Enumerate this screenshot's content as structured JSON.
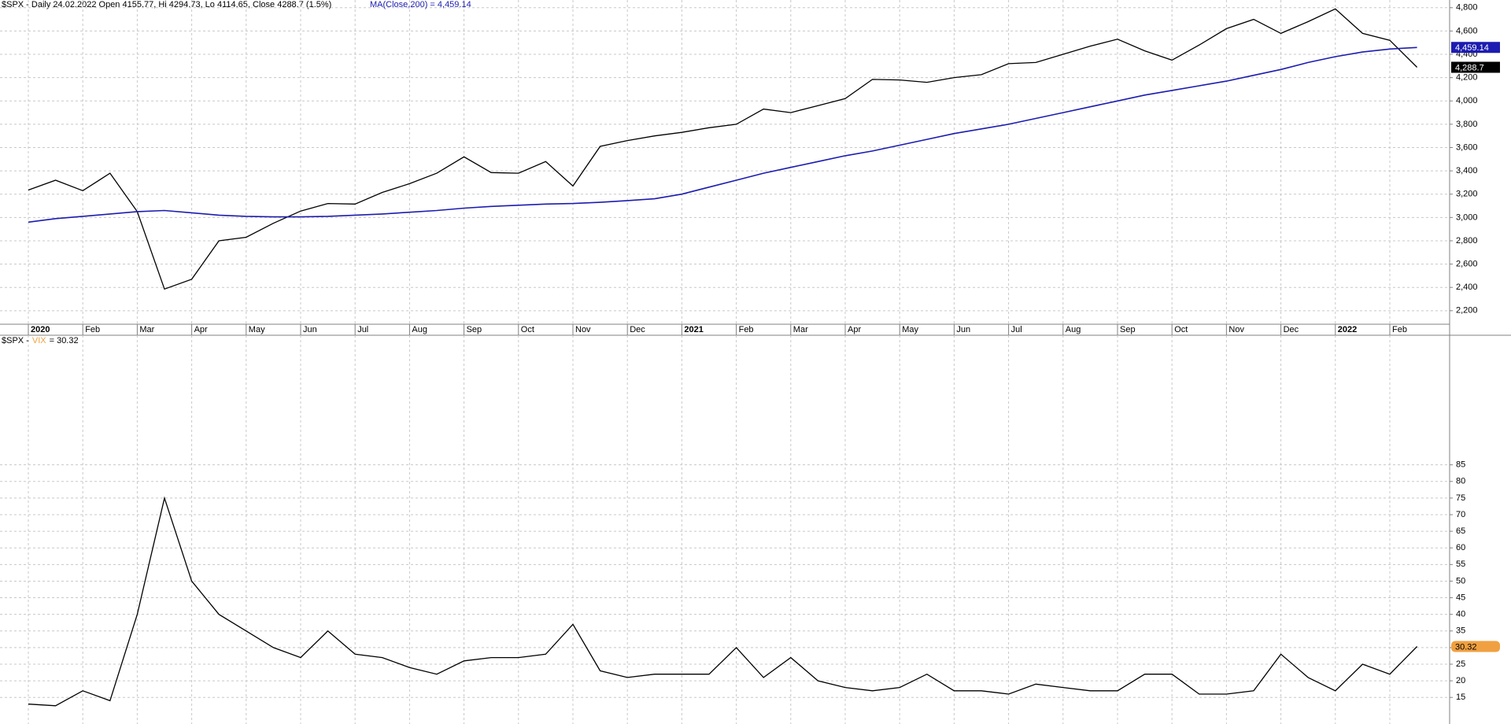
{
  "chart_data": [
    {
      "type": "line",
      "title": "$SPX - Daily 24.02.2022 Open 4155.77, Hi 4294.73, Lo 4114.65, Close 4288.7 (1.5%)",
      "categories": [
        "2020",
        null,
        "Feb",
        null,
        "Mar",
        null,
        "Apr",
        null,
        "May",
        null,
        "Jun",
        null,
        "Jul",
        null,
        "Aug",
        null,
        "Sep",
        null,
        "Oct",
        null,
        "Nov",
        null,
        "Dec",
        null,
        "2021",
        null,
        "Feb",
        null,
        "Mar",
        null,
        "Apr",
        null,
        "May",
        null,
        "Jun",
        null,
        "Jul",
        null,
        "Aug",
        null,
        "Sep",
        null,
        "Oct",
        null,
        "Nov",
        null,
        "Dec",
        null,
        "2022",
        null,
        "Feb",
        null
      ],
      "series": [
        {
          "color": "#000000",
          "values": [
            3235,
            3320,
            3230,
            3380,
            3050,
            2386,
            2470,
            2800,
            2830,
            2950,
            3055,
            3120,
            3115,
            3215,
            3290,
            3380,
            3520,
            3385,
            3380,
            3480,
            3270,
            3610,
            3660,
            3700,
            3730,
            3770,
            3800,
            3930,
            3900,
            3960,
            4020,
            4185,
            4180,
            4160,
            4200,
            4225,
            4320,
            4330,
            4400,
            4470,
            4530,
            4430,
            4350,
            4480,
            4620,
            4700,
            4580,
            4680,
            4790,
            4580,
            4520,
            4288.7
          ],
          "tag": {
            "value": 4288.7,
            "label": "4,288.7"
          }
        },
        {
          "name": "MA(Close,200) = 4,459.14",
          "color": "#1c1cb0",
          "values": [
            2960,
            2990,
            3010,
            3030,
            3050,
            3060,
            3040,
            3020,
            3010,
            3005,
            3005,
            3010,
            3020,
            3030,
            3045,
            3060,
            3080,
            3095,
            3105,
            3115,
            3120,
            3130,
            3145,
            3160,
            3200,
            3260,
            3320,
            3380,
            3430,
            3480,
            3530,
            3570,
            3620,
            3670,
            3720,
            3760,
            3800,
            3850,
            3900,
            3950,
            4000,
            4050,
            4090,
            4130,
            4170,
            4220,
            4270,
            4330,
            4380,
            4420,
            4445,
            4459.14
          ],
          "tag": {
            "value": 4459.14,
            "label": "4,459.14"
          }
        }
      ],
      "ylim": [
        2084,
        4866
      ],
      "yticks": [
        {
          "value": 2200,
          "label": "2,200"
        },
        {
          "value": 2400,
          "label": "2,400"
        },
        {
          "value": 2600,
          "label": "2,600"
        },
        {
          "value": 2800,
          "label": "2,800"
        },
        {
          "value": 3000,
          "label": "3,000"
        },
        {
          "value": 3200,
          "label": "3,200"
        },
        {
          "value": 3400,
          "label": "3,400"
        },
        {
          "value": 3600,
          "label": "3,600"
        },
        {
          "value": 3800,
          "label": "3,800"
        },
        {
          "value": 4000,
          "label": "4,000"
        },
        {
          "value": 4200,
          "label": "4,200"
        },
        {
          "value": 4400,
          "label": "4,400"
        },
        {
          "value": 4600,
          "label": "4,600"
        },
        {
          "value": 4800,
          "label": "4,800"
        }
      ],
      "grid": true
    },
    {
      "type": "line",
      "title": "$SPX -",
      "series": [
        {
          "name": "VIX",
          "label_color": "#f0a040",
          "color": "#000000",
          "subtitle": "= 30.32",
          "values": [
            13,
            12.5,
            17,
            14,
            40,
            75,
            50,
            40,
            35,
            30,
            27,
            35,
            28,
            27,
            24,
            22,
            26,
            27,
            27,
            28,
            37,
            23,
            21,
            22,
            22,
            22,
            30,
            21,
            27,
            20,
            18,
            17,
            18,
            22,
            17,
            17,
            16,
            19,
            18,
            17,
            17,
            22,
            22,
            16,
            16,
            17,
            28,
            21,
            17,
            25,
            22,
            30.32
          ],
          "tag": {
            "value": 30.32,
            "label": "30.32"
          }
        }
      ],
      "ylim": [
        7,
        124
      ],
      "yticks": [
        15,
        20,
        25,
        30,
        35,
        40,
        45,
        50,
        55,
        60,
        65,
        70,
        75,
        80,
        85
      ],
      "grid": true
    }
  ]
}
